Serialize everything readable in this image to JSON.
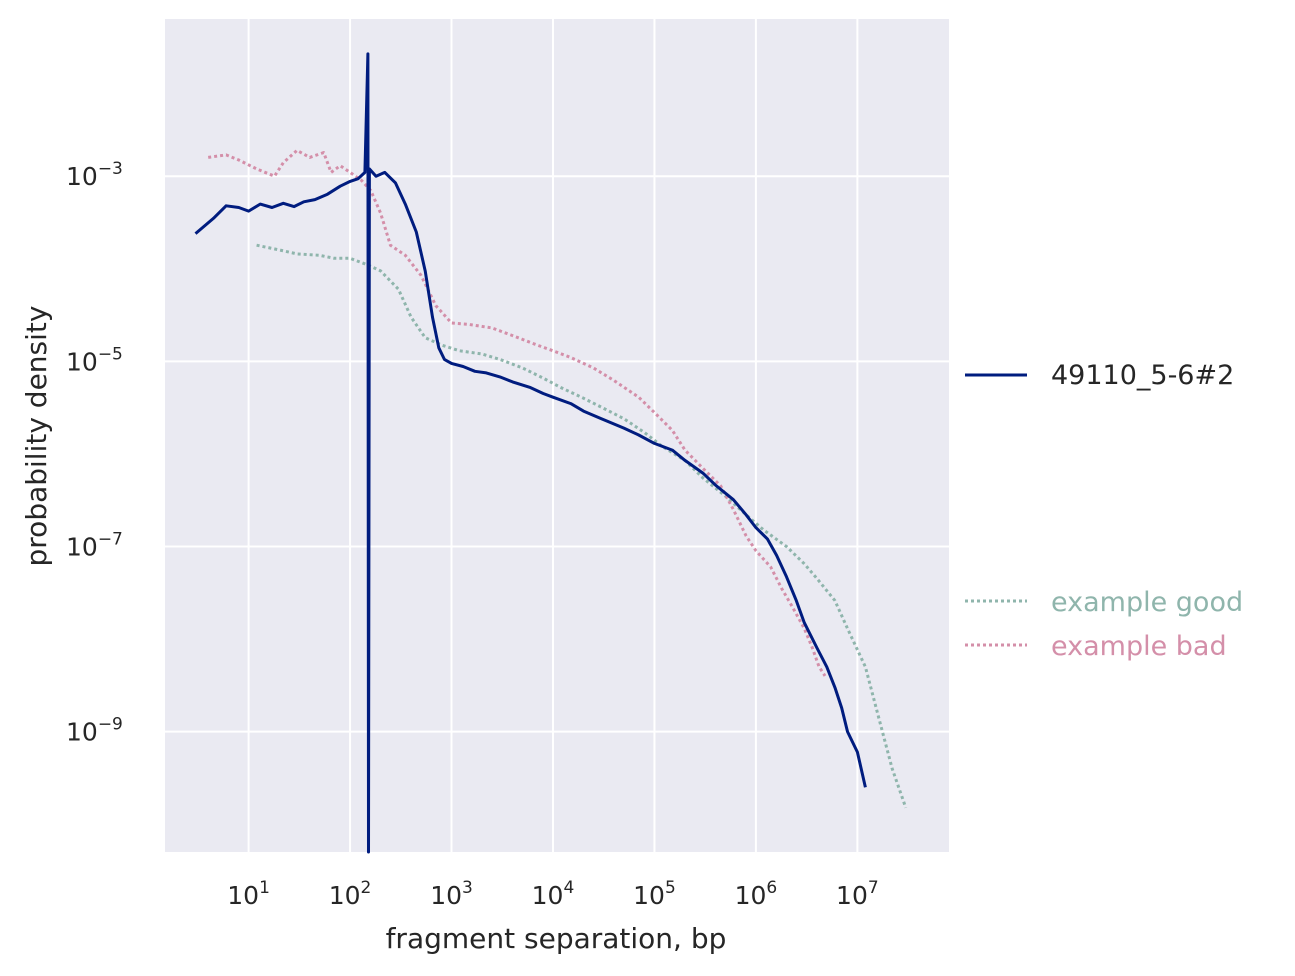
{
  "chart_data": {
    "type": "line",
    "title": "",
    "xlabel": "fragment separation, bp",
    "ylabel": "probability density",
    "x_scale": "log",
    "y_scale": "log",
    "xlim": [
      1.5,
      80000000
    ],
    "ylim": [
      5e-11,
      0.05
    ],
    "x_ticks": [
      {
        "value": 10,
        "base": "10",
        "exp": "1"
      },
      {
        "value": 100,
        "base": "10",
        "exp": "2"
      },
      {
        "value": 1000,
        "base": "10",
        "exp": "3"
      },
      {
        "value": 10000,
        "base": "10",
        "exp": "4"
      },
      {
        "value": 100000,
        "base": "10",
        "exp": "5"
      },
      {
        "value": 1000000,
        "base": "10",
        "exp": "6"
      },
      {
        "value": 10000000,
        "base": "10",
        "exp": "7"
      }
    ],
    "y_ticks": [
      {
        "value": 0.001,
        "base": "10",
        "exp": "−3"
      },
      {
        "value": 1e-05,
        "base": "10",
        "exp": "−5"
      },
      {
        "value": 1e-07,
        "base": "10",
        "exp": "−7"
      },
      {
        "value": 1e-09,
        "base": "10",
        "exp": "−9"
      }
    ],
    "grid": true,
    "legend_position": "right",
    "series": [
      {
        "name": "49110_5-6#2",
        "style": "solid",
        "color": "#001c7f",
        "points": [
          [
            3.0,
            0.00024
          ],
          [
            4.5,
            0.00035
          ],
          [
            6.0,
            0.00048
          ],
          [
            8.0,
            0.00046
          ],
          [
            10.0,
            0.00042
          ],
          [
            13.0,
            0.0005
          ],
          [
            17.0,
            0.00046
          ],
          [
            22.0,
            0.00051
          ],
          [
            28.0,
            0.00047
          ],
          [
            35.0,
            0.00053
          ],
          [
            45.0,
            0.00056
          ],
          [
            60.0,
            0.00064
          ],
          [
            80.0,
            0.00078
          ],
          [
            100.0,
            0.00088
          ],
          [
            120.0,
            0.00094
          ],
          [
            140.0,
            0.0011
          ],
          [
            150.0,
            0.021
          ],
          [
            152.0,
            5e-11
          ],
          [
            155.0,
            0.0012
          ],
          [
            180.0,
            0.001
          ],
          [
            220.0,
            0.0011
          ],
          [
            280.0,
            0.00085
          ],
          [
            350.0,
            0.0005
          ],
          [
            450.0,
            0.00025
          ],
          [
            550.0,
            9.5e-05
          ],
          [
            650.0,
            3e-05
          ],
          [
            750.0,
            1.4e-05
          ],
          [
            850.0,
            1.05e-05
          ],
          [
            1000.0,
            9.5e-06
          ],
          [
            1300.0,
            8.8e-06
          ],
          [
            1700.0,
            7.8e-06
          ],
          [
            2200.0,
            7.5e-06
          ],
          [
            3000.0,
            6.8e-06
          ],
          [
            4000.0,
            6e-06
          ],
          [
            6000.0,
            5.2e-06
          ],
          [
            8000.0,
            4.5e-06
          ],
          [
            10000.0,
            4.1e-06
          ],
          [
            15000.0,
            3.5e-06
          ],
          [
            20000.0,
            2.9e-06
          ],
          [
            30000.0,
            2.4e-06
          ],
          [
            50000.0,
            1.9e-06
          ],
          [
            70000.0,
            1.6e-06
          ],
          [
            100000.0,
            1.3e-06
          ],
          [
            150000.0,
            1.1e-06
          ],
          [
            200000.0,
            8.5e-07
          ],
          [
            300000.0,
            6.2e-07
          ],
          [
            400000.0,
            4.6e-07
          ],
          [
            600000.0,
            3.2e-07
          ],
          [
            800000.0,
            2.2e-07
          ],
          [
            1000000.0,
            1.6e-07
          ],
          [
            1300000.0,
            1.2e-07
          ],
          [
            1600000.0,
            8e-08
          ],
          [
            2000000.0,
            4.7e-08
          ],
          [
            2500000.0,
            2.6e-08
          ],
          [
            3000000.0,
            1.5e-08
          ],
          [
            4000000.0,
            8e-09
          ],
          [
            5000000.0,
            5e-09
          ],
          [
            6000000.0,
            3e-09
          ],
          [
            7000000.0,
            1.8e-09
          ],
          [
            8000000.0,
            1e-09
          ],
          [
            10000000.0,
            6e-10
          ],
          [
            12000000.0,
            2.5e-10
          ]
        ]
      },
      {
        "name": "example good",
        "style": "dotted",
        "color": "#8fb5ac",
        "points": [
          [
            12.0,
            0.00018
          ],
          [
            20.0,
            0.00016
          ],
          [
            30.0,
            0.000145
          ],
          [
            50.0,
            0.00014
          ],
          [
            70.0,
            0.00013
          ],
          [
            100.0,
            0.00013
          ],
          [
            150.0,
            0.00011
          ],
          [
            200.0,
            9.5e-05
          ],
          [
            300.0,
            6e-05
          ],
          [
            400.0,
            3e-05
          ],
          [
            550.0,
            1.8e-05
          ],
          [
            800.0,
            1.5e-05
          ],
          [
            1200.0,
            1.3e-05
          ],
          [
            2000.0,
            1.2e-05
          ],
          [
            3000.0,
            1.05e-05
          ],
          [
            5000.0,
            8.5e-06
          ],
          [
            8000.0,
            6.6e-06
          ],
          [
            12000.0,
            5.2e-06
          ],
          [
            20000.0,
            4e-06
          ],
          [
            30000.0,
            3.2e-06
          ],
          [
            50000.0,
            2.4e-06
          ],
          [
            80000.0,
            1.7e-06
          ],
          [
            120000.0,
            1.2e-06
          ],
          [
            200000.0,
            8.5e-07
          ],
          [
            300000.0,
            5.5e-07
          ],
          [
            500000.0,
            3.5e-07
          ],
          [
            800000.0,
            2.2e-07
          ],
          [
            1200000.0,
            1.5e-07
          ],
          [
            2000000.0,
            1e-07
          ],
          [
            3000000.0,
            6.5e-08
          ],
          [
            4000000.0,
            4.5e-08
          ],
          [
            6000000.0,
            2.6e-08
          ],
          [
            8000000.0,
            1.3e-08
          ],
          [
            12000000.0,
            5e-09
          ],
          [
            16000000.0,
            1.5e-09
          ],
          [
            22000000.0,
            4e-10
          ],
          [
            30000000.0,
            1.5e-10
          ]
        ]
      },
      {
        "name": "example bad",
        "style": "dotted",
        "color": "#d48fa9",
        "points": [
          [
            4.0,
            0.0016
          ],
          [
            6.0,
            0.0017
          ],
          [
            8.0,
            0.0015
          ],
          [
            12.0,
            0.0012
          ],
          [
            18.0,
            0.001
          ],
          [
            22.0,
            0.0014
          ],
          [
            30.0,
            0.0019
          ],
          [
            40.0,
            0.0016
          ],
          [
            55.0,
            0.0018
          ],
          [
            65.0,
            0.0011
          ],
          [
            80.0,
            0.0013
          ],
          [
            100.0,
            0.0011
          ],
          [
            130.0,
            0.0009
          ],
          [
            160.0,
            0.0007
          ],
          [
            200.0,
            0.0004
          ],
          [
            250.0,
            0.00018
          ],
          [
            350.0,
            0.00014
          ],
          [
            500.0,
            8.5e-05
          ],
          [
            700.0,
            4e-05
          ],
          [
            1000.0,
            2.6e-05
          ],
          [
            1500.0,
            2.5e-05
          ],
          [
            2500.0,
            2.3e-05
          ],
          [
            4000.0,
            1.9e-05
          ],
          [
            7000.0,
            1.5e-05
          ],
          [
            10000.0,
            1.3e-05
          ],
          [
            15000.0,
            1.1e-05
          ],
          [
            25000.0,
            8.5e-06
          ],
          [
            40000.0,
            6.2e-06
          ],
          [
            70000.0,
            4.1e-06
          ],
          [
            100000.0,
            2.8e-06
          ],
          [
            150000.0,
            1.8e-06
          ],
          [
            200000.0,
            1.1e-06
          ],
          [
            300000.0,
            7e-07
          ],
          [
            450000.0,
            4.5e-07
          ],
          [
            600000.0,
            2.5e-07
          ],
          [
            800000.0,
            1.3e-07
          ],
          [
            1000000.0,
            9e-08
          ],
          [
            1400000.0,
            6e-08
          ],
          [
            1800000.0,
            3.5e-08
          ],
          [
            2300000.0,
            2.2e-08
          ],
          [
            3000000.0,
            1.3e-08
          ],
          [
            3600000.0,
            8e-09
          ],
          [
            4200000.0,
            5e-09
          ],
          [
            4800000.0,
            4e-09
          ]
        ]
      }
    ]
  },
  "legend": {
    "items": [
      {
        "label": "49110_5-6#2",
        "color": "#001c7f"
      },
      {
        "label": "example good",
        "color": "#8fb5ac"
      },
      {
        "label": "example bad",
        "color": "#d48fa9"
      }
    ]
  }
}
